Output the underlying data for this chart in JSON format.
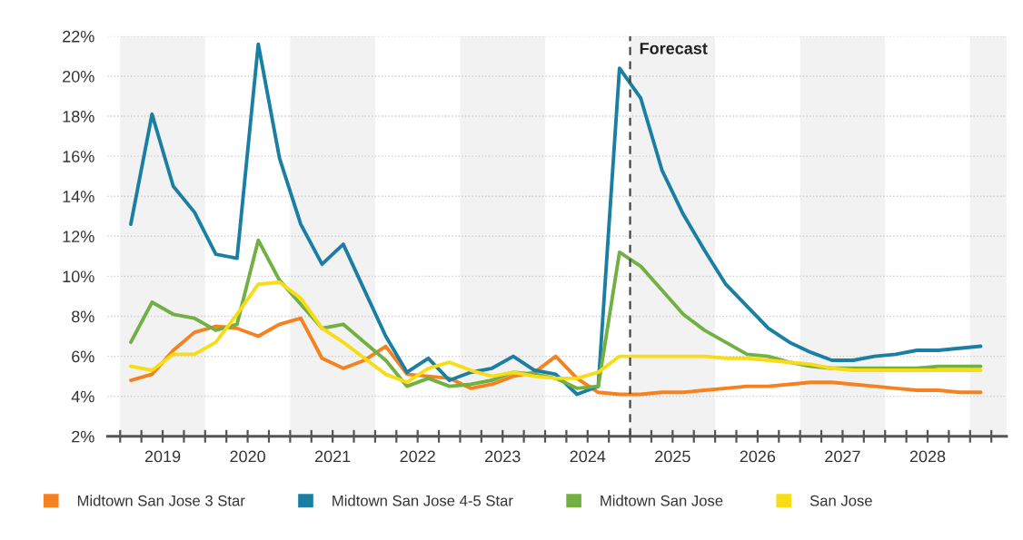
{
  "chart_data": {
    "type": "line",
    "x": [
      2019.125,
      2019.375,
      2019.625,
      2019.875,
      2020.125,
      2020.375,
      2020.625,
      2020.875,
      2021.125,
      2021.375,
      2021.625,
      2021.875,
      2022.125,
      2022.375,
      2022.625,
      2022.875,
      2023.125,
      2023.375,
      2023.625,
      2023.875,
      2024.125,
      2024.375,
      2024.625,
      2024.875,
      2025.125,
      2025.375,
      2025.625,
      2025.875,
      2026.125,
      2026.375,
      2026.625,
      2026.875,
      2027.125,
      2027.375,
      2027.625,
      2027.875,
      2028.125,
      2028.375,
      2028.625,
      2028.875,
      2029.125
    ],
    "series": [
      {
        "name": "Midtown San Jose 3 Star",
        "color": "#f5821f",
        "values": [
          4.8,
          5.1,
          6.3,
          7.2,
          7.5,
          7.4,
          7.0,
          7.6,
          7.9,
          5.9,
          5.4,
          5.8,
          6.5,
          5.1,
          5.0,
          4.9,
          4.4,
          4.6,
          5.0,
          5.2,
          6.0,
          4.9,
          4.2,
          4.1,
          4.1,
          4.2,
          4.2,
          4.3,
          4.4,
          4.5,
          4.5,
          4.6,
          4.7,
          4.7,
          4.6,
          4.5,
          4.4,
          4.3,
          4.3,
          4.2,
          4.2
        ]
      },
      {
        "name": "Midtown San Jose 4-5 Star",
        "color": "#1a7fa3",
        "values": [
          12.6,
          18.1,
          14.5,
          13.2,
          11.1,
          10.9,
          21.6,
          15.9,
          12.6,
          10.6,
          11.6,
          9.3,
          7.0,
          5.2,
          5.9,
          4.8,
          5.2,
          5.4,
          6.0,
          5.3,
          5.1,
          4.1,
          4.5,
          20.4,
          18.9,
          15.3,
          13.1,
          11.3,
          9.6,
          8.5,
          7.4,
          6.7,
          6.2,
          5.8,
          5.8,
          6.0,
          6.1,
          6.3,
          6.3,
          6.4,
          6.5
        ]
      },
      {
        "name": "Midtown San Jose",
        "color": "#72b043",
        "values": [
          6.7,
          8.7,
          8.1,
          7.9,
          7.3,
          7.6,
          11.8,
          9.8,
          8.6,
          7.4,
          7.6,
          6.7,
          5.8,
          4.5,
          4.9,
          4.5,
          4.6,
          4.8,
          5.2,
          5.1,
          4.9,
          4.4,
          4.5,
          11.2,
          10.5,
          9.3,
          8.1,
          7.3,
          6.7,
          6.1,
          6.0,
          5.7,
          5.5,
          5.4,
          5.4,
          5.4,
          5.4,
          5.4,
          5.5,
          5.5,
          5.5
        ]
      },
      {
        "name": "San Jose",
        "color": "#f7dc16",
        "values": [
          5.5,
          5.3,
          6.1,
          6.1,
          6.7,
          8.1,
          9.6,
          9.7,
          8.9,
          7.4,
          6.7,
          5.9,
          5.1,
          4.7,
          5.4,
          5.7,
          5.3,
          5.0,
          5.2,
          5.0,
          4.9,
          4.9,
          5.2,
          6.0,
          6.0,
          6.0,
          6.0,
          6.0,
          5.9,
          5.9,
          5.8,
          5.7,
          5.6,
          5.4,
          5.3,
          5.3,
          5.3,
          5.3,
          5.3,
          5.3,
          5.3
        ]
      }
    ],
    "xlim": [
      2018.85,
      2029.43
    ],
    "xticks": [
      {
        "value": 2019,
        "label": null
      },
      {
        "value": 2019.25,
        "label": null
      },
      {
        "value": 2019.5,
        "label": "2019"
      },
      {
        "value": 2019.75,
        "label": null
      },
      {
        "value": 2020,
        "label": null
      },
      {
        "value": 2020.25,
        "label": null
      },
      {
        "value": 2020.5,
        "label": "2020"
      },
      {
        "value": 2020.75,
        "label": null
      },
      {
        "value": 2021,
        "label": null
      },
      {
        "value": 2021.25,
        "label": null
      },
      {
        "value": 2021.5,
        "label": "2021"
      },
      {
        "value": 2021.75,
        "label": null
      },
      {
        "value": 2022,
        "label": null
      },
      {
        "value": 2022.25,
        "label": null
      },
      {
        "value": 2022.5,
        "label": "2022"
      },
      {
        "value": 2022.75,
        "label": null
      },
      {
        "value": 2023,
        "label": null
      },
      {
        "value": 2023.25,
        "label": null
      },
      {
        "value": 2023.5,
        "label": "2023"
      },
      {
        "value": 2023.75,
        "label": null
      },
      {
        "value": 2024,
        "label": null
      },
      {
        "value": 2024.25,
        "label": null
      },
      {
        "value": 2024.5,
        "label": "2024"
      },
      {
        "value": 2024.75,
        "label": null
      },
      {
        "value": 2025,
        "label": null
      },
      {
        "value": 2025.25,
        "label": null
      },
      {
        "value": 2025.5,
        "label": "2025"
      },
      {
        "value": 2025.75,
        "label": null
      },
      {
        "value": 2026,
        "label": null
      },
      {
        "value": 2026.25,
        "label": null
      },
      {
        "value": 2026.5,
        "label": "2026"
      },
      {
        "value": 2026.75,
        "label": null
      },
      {
        "value": 2027,
        "label": null
      },
      {
        "value": 2027.25,
        "label": null
      },
      {
        "value": 2027.5,
        "label": "2027"
      },
      {
        "value": 2027.75,
        "label": null
      },
      {
        "value": 2028,
        "label": null
      },
      {
        "value": 2028.25,
        "label": null
      },
      {
        "value": 2028.5,
        "label": "2028"
      },
      {
        "value": 2028.75,
        "label": null
      },
      {
        "value": 2029,
        "label": null
      },
      {
        "value": 2029.25,
        "label": null
      }
    ],
    "ylim": [
      2,
      22
    ],
    "yticks": [
      {
        "value": 2,
        "label": "2%"
      },
      {
        "value": 4,
        "label": "4%"
      },
      {
        "value": 6,
        "label": "6%"
      },
      {
        "value": 8,
        "label": "8%"
      },
      {
        "value": 10,
        "label": "10%"
      },
      {
        "value": 12,
        "label": "12%"
      },
      {
        "value": 14,
        "label": "14%"
      },
      {
        "value": 16,
        "label": "16%"
      },
      {
        "value": 18,
        "label": "18%"
      },
      {
        "value": 20,
        "label": "20%"
      },
      {
        "value": 22,
        "label": "22%"
      }
    ],
    "grid": "y",
    "legend": "bottom",
    "marker": "none",
    "line_style": "solid",
    "ref_lines": [
      {
        "axis": "x",
        "value": 2025,
        "label": "Forecast",
        "color": "#444444",
        "line_style": "dashed"
      }
    ],
    "bands": [
      {
        "axis": "x",
        "from": 2019,
        "to": 2020,
        "color": "#f2f2f2"
      },
      {
        "axis": "x",
        "from": 2021,
        "to": 2022,
        "color": "#f2f2f2"
      },
      {
        "axis": "x",
        "from": 2023,
        "to": 2024,
        "color": "#f2f2f2"
      },
      {
        "axis": "x",
        "from": 2025,
        "to": 2026,
        "color": "#f2f2f2"
      },
      {
        "axis": "x",
        "from": 2027,
        "to": 2028,
        "color": "#f2f2f2"
      },
      {
        "axis": "x",
        "from": 2029,
        "to": 2029.43,
        "color": "#f2f2f2"
      }
    ]
  }
}
